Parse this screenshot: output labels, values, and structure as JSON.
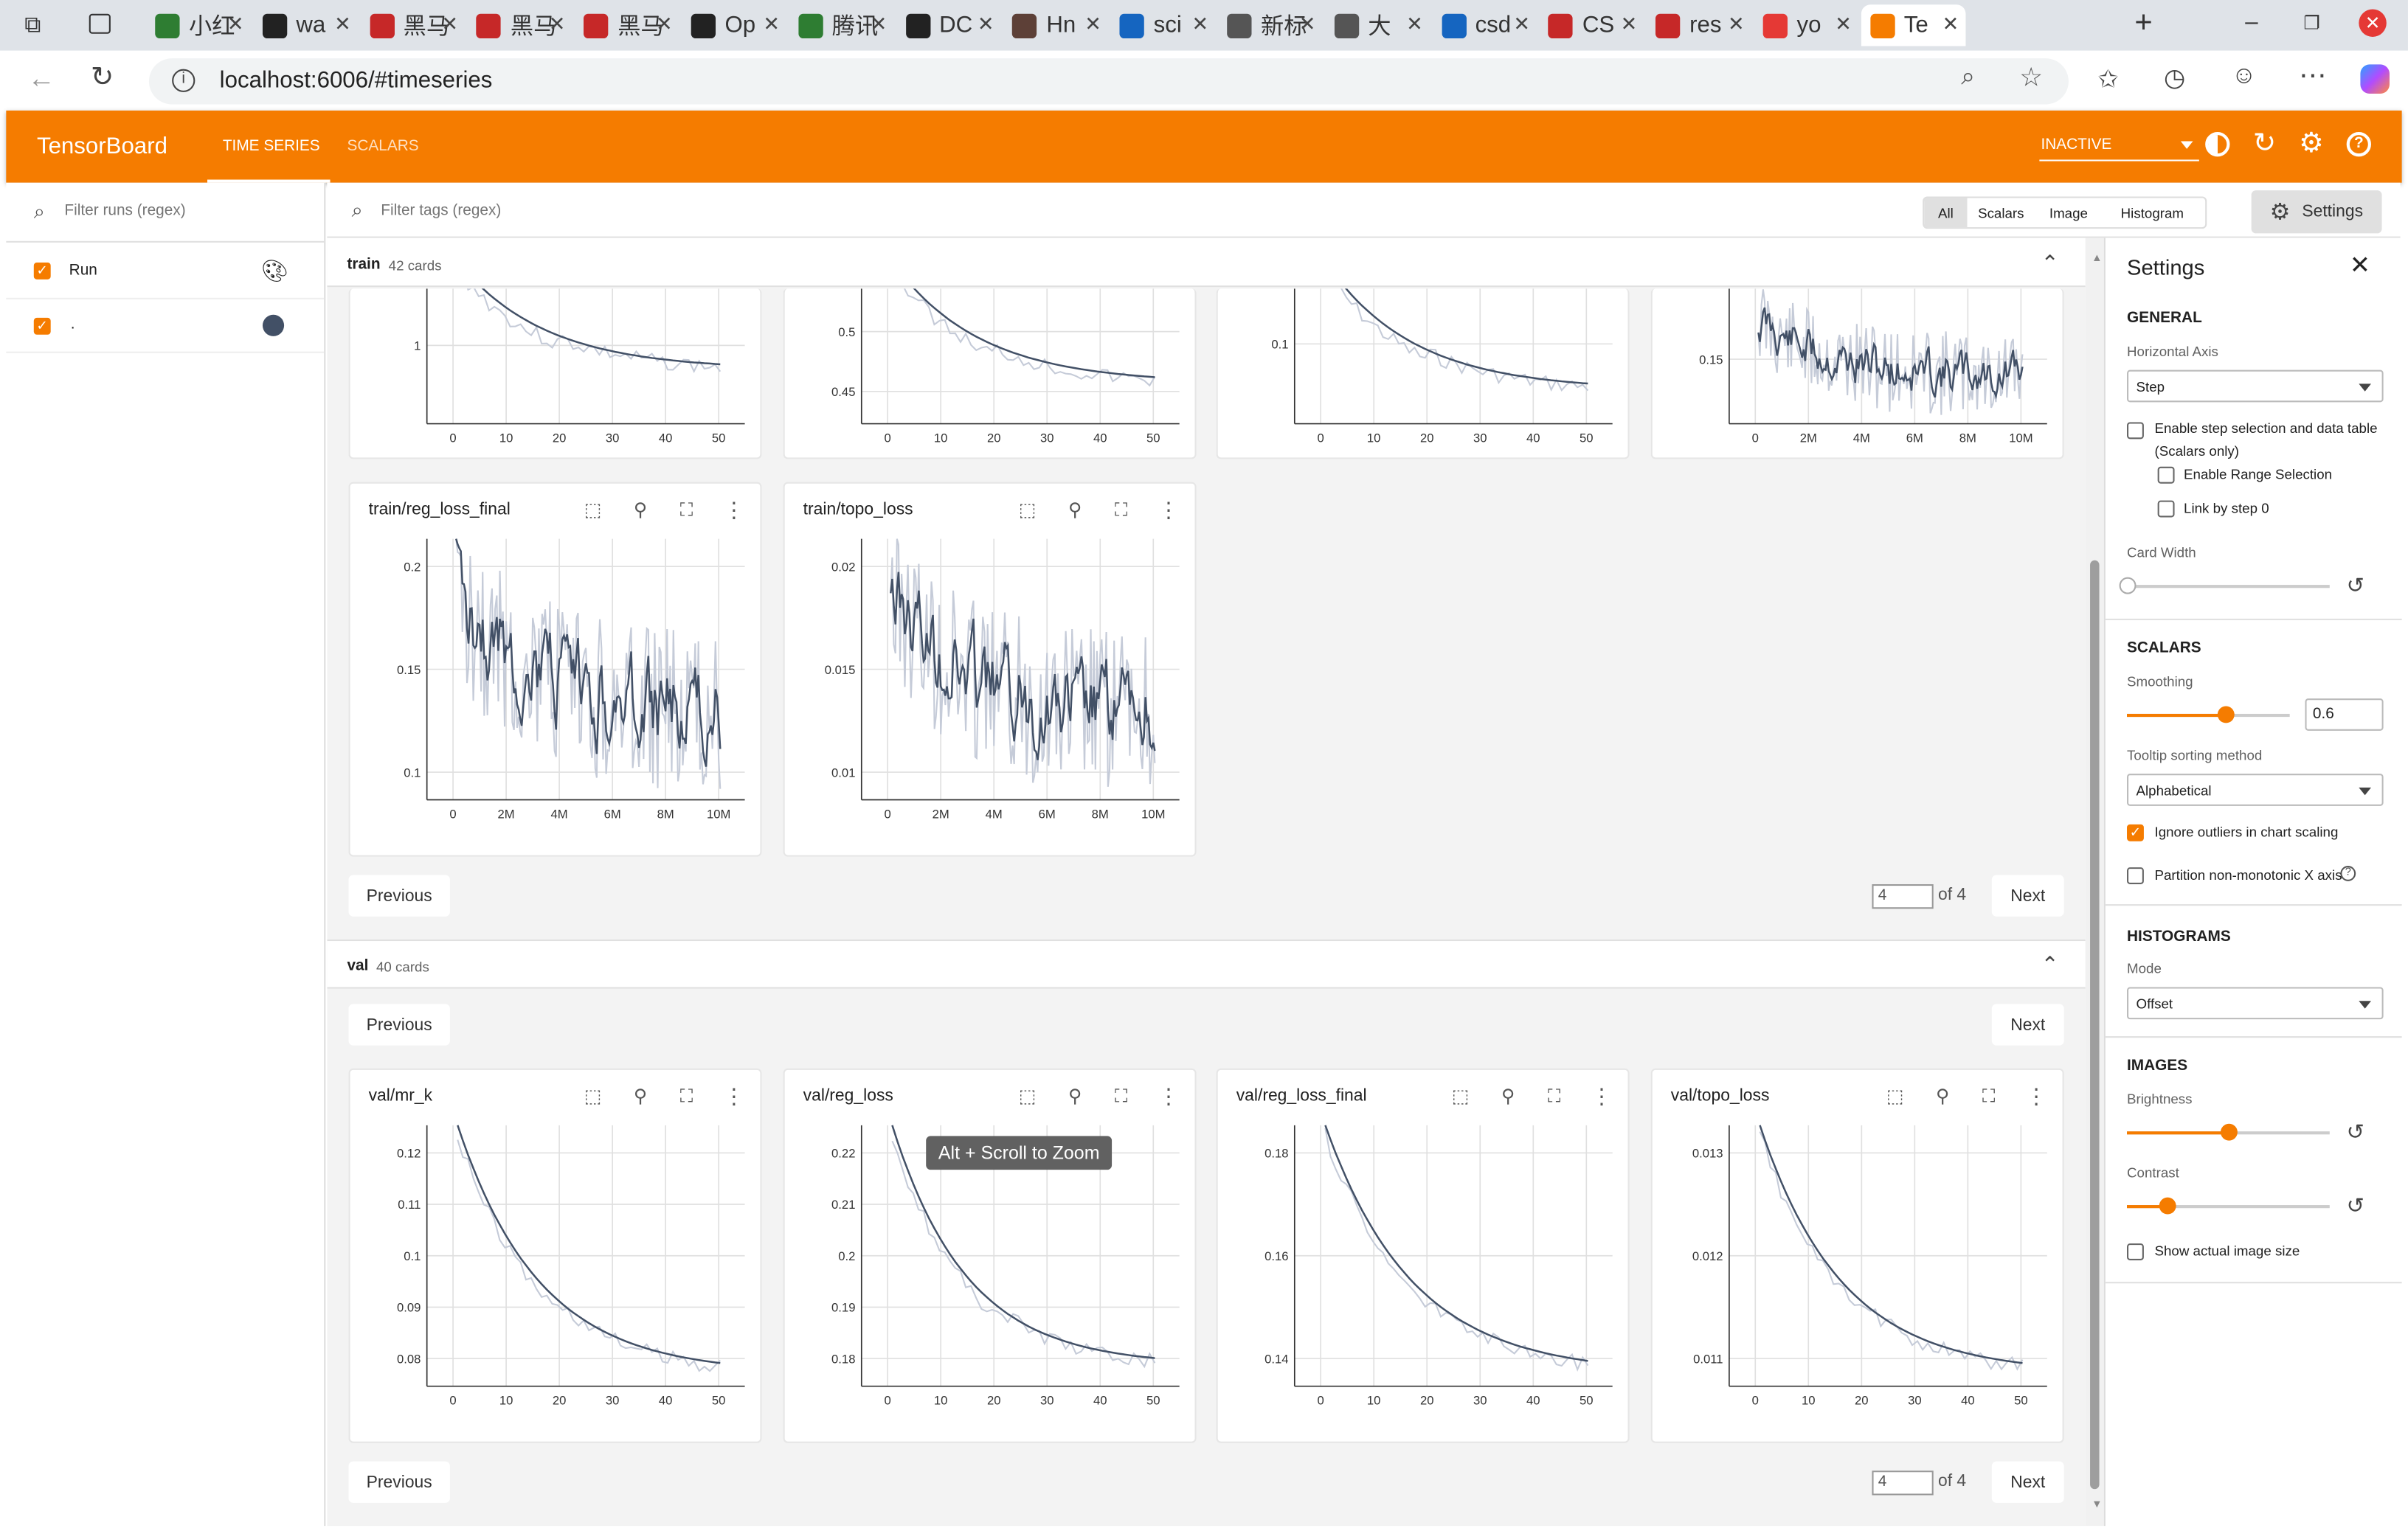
{
  "browser": {
    "tabs": [
      {
        "label": "小红",
        "color": "#2e7d32"
      },
      {
        "label": "wa",
        "color": "#222"
      },
      {
        "label": "黑马",
        "color": "#c62828"
      },
      {
        "label": "黑马",
        "color": "#c62828"
      },
      {
        "label": "黑马",
        "color": "#c62828"
      },
      {
        "label": "Op",
        "color": "#222"
      },
      {
        "label": "腾讯",
        "color": "#2e7d32"
      },
      {
        "label": "DC",
        "color": "#222"
      },
      {
        "label": "Hn",
        "color": "#5d4037"
      },
      {
        "label": "sci",
        "color": "#1565c0"
      },
      {
        "label": "新标",
        "color": "#555"
      },
      {
        "label": "大",
        "color": "#555"
      },
      {
        "label": "csd",
        "color": "#1565c0"
      },
      {
        "label": "CS",
        "color": "#c62828"
      },
      {
        "label": "res",
        "color": "#c62828"
      },
      {
        "label": "yo",
        "color": "#e53935"
      },
      {
        "label": "Te",
        "color": "#f57c00"
      }
    ],
    "url": "localhost:6006/#timeseries"
  },
  "header": {
    "brand": "TensorBoard",
    "nav": [
      "TIME SERIES",
      "SCALARS"
    ],
    "status": "INACTIVE"
  },
  "sidebar": {
    "filter_placeholder": "Filter runs (regex)",
    "runs": [
      {
        "name": "Run",
        "checked": true
      },
      {
        "name": ".",
        "checked": true,
        "color": "#425066"
      }
    ]
  },
  "toolbar": {
    "filter_placeholder": "Filter tags (regex)",
    "chips": [
      "All",
      "Scalars",
      "Image",
      "Histogram"
    ],
    "settings_label": "Settings"
  },
  "train_section": {
    "name": "train",
    "count": "42 cards",
    "previous": "Previous",
    "next": "Next",
    "page": "4",
    "of": "of 4",
    "cards": [
      {
        "title": "train/reg_loss_final",
        "yticks": [
          "0.2",
          "0.15",
          "0.1"
        ],
        "xticks": [
          "0",
          "2M",
          "4M",
          "6M",
          "8M",
          "10M"
        ]
      },
      {
        "title": "train/topo_loss",
        "yticks": [
          "0.02",
          "0.015",
          "0.01"
        ],
        "xticks": [
          "0",
          "2M",
          "4M",
          "6M",
          "8M",
          "10M"
        ]
      }
    ],
    "top_cards": [
      {
        "yticks": [
          "1"
        ],
        "xticks": [
          "0",
          "10",
          "20",
          "30",
          "40",
          "50"
        ]
      },
      {
        "yticks": [
          "0.5",
          "0.45"
        ],
        "xticks": [
          "0",
          "10",
          "20",
          "30",
          "40",
          "50"
        ]
      },
      {
        "yticks": [
          "0.1"
        ],
        "xticks": [
          "0",
          "10",
          "20",
          "30",
          "40",
          "50"
        ]
      },
      {
        "yticks": [
          "0.15"
        ],
        "xticks": [
          "0",
          "2M",
          "4M",
          "6M",
          "8M",
          "10M"
        ]
      }
    ]
  },
  "val_section": {
    "name": "val",
    "count": "40 cards",
    "previous": "Previous",
    "next": "Next",
    "page": "4",
    "of": "of 4",
    "cards": [
      {
        "title": "val/mr_k",
        "yticks": [
          "0.12",
          "0.11",
          "0.1",
          "0.09",
          "0.08"
        ],
        "xticks": [
          "0",
          "10",
          "20",
          "30",
          "40",
          "50"
        ]
      },
      {
        "title": "val/reg_loss",
        "yticks": [
          "0.22",
          "0.21",
          "0.2",
          "0.19",
          "0.18"
        ],
        "xticks": [
          "0",
          "10",
          "20",
          "30",
          "40",
          "50"
        ]
      },
      {
        "title": "val/reg_loss_final",
        "yticks": [
          "0.18",
          "0.16",
          "0.14"
        ],
        "xticks": [
          "0",
          "10",
          "20",
          "30",
          "40",
          "50"
        ]
      },
      {
        "title": "val/topo_loss",
        "yticks": [
          "0.013",
          "0.012",
          "0.011"
        ],
        "xticks": [
          "0",
          "10",
          "20",
          "30",
          "40",
          "50"
        ]
      }
    ],
    "tooltip": "Alt + Scroll to Zoom"
  },
  "settings": {
    "title": "Settings",
    "general": "GENERAL",
    "horizontal_axis_label": "Horizontal Axis",
    "horizontal_axis_value": "Step",
    "enable_step_selection": "Enable step selection and data table",
    "scalars_only": "(Scalars only)",
    "enable_range": "Enable Range Selection",
    "link_step": "Link by step 0",
    "card_width": "Card Width",
    "scalars": "SCALARS",
    "smoothing_label": "Smoothing",
    "smoothing_value": "0.6",
    "tooltip_sort_label": "Tooltip sorting method",
    "tooltip_sort_value": "Alphabetical",
    "ignore_outliers": "Ignore outliers in chart scaling",
    "partition": "Partition non-monotonic X axis",
    "histograms": "HISTOGRAMS",
    "mode_label": "Mode",
    "mode_value": "Offset",
    "images": "IMAGES",
    "brightness": "Brightness",
    "contrast": "Contrast",
    "actual_size": "Show actual image size"
  }
}
